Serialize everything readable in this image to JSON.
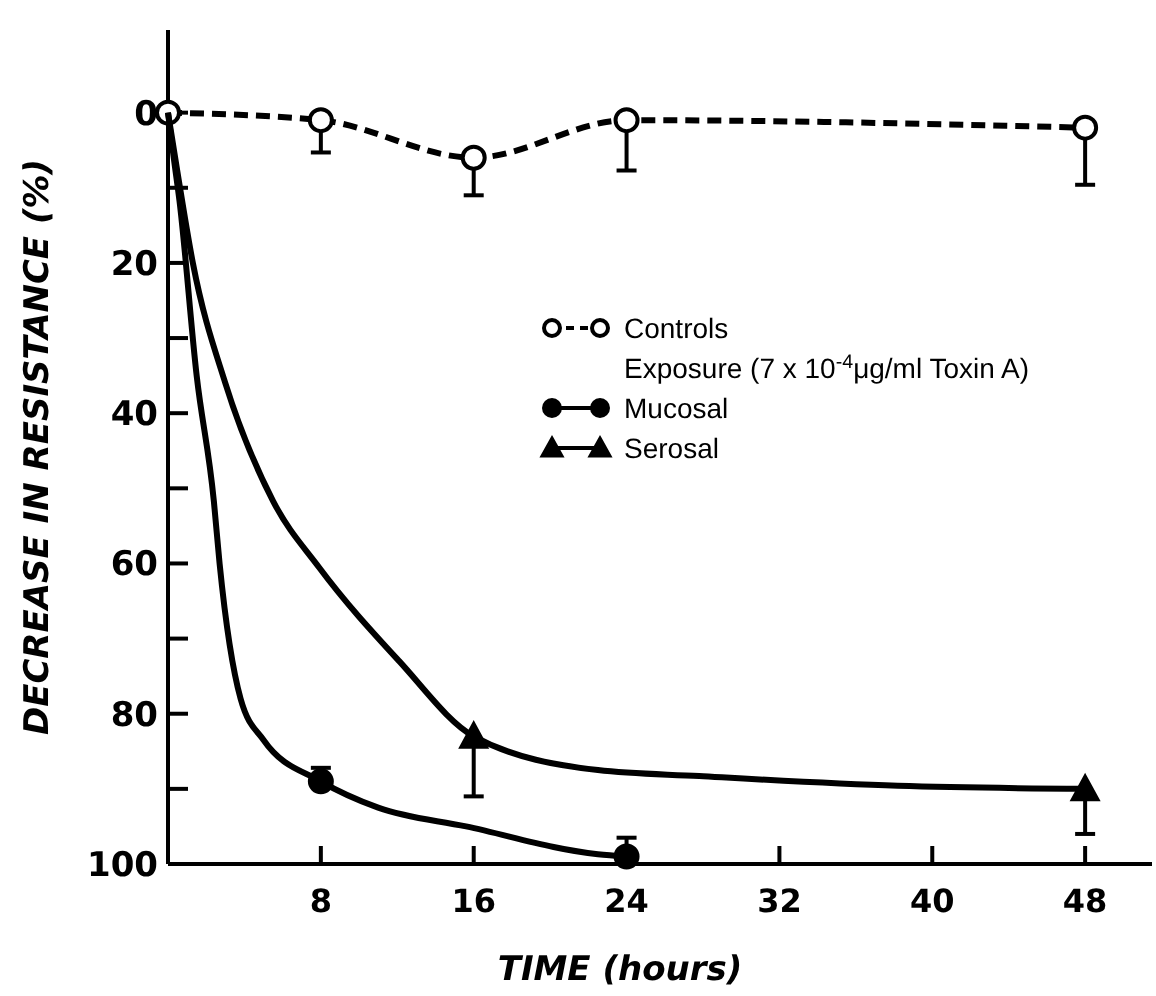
{
  "chart_data": {
    "type": "line",
    "xlabel": "TIME (hours)",
    "ylabel": "DECREASE IN RESISTANCE (%)",
    "xlim": [
      0,
      51.5
    ],
    "ylim": [
      100,
      -11
    ],
    "xticks": [
      8,
      16,
      24,
      32,
      40,
      48
    ],
    "yticks": [
      0,
      {
        "value": 10,
        "label": null
      },
      20,
      {
        "value": 30,
        "label": null
      },
      40,
      {
        "value": 50,
        "label": null
      },
      60,
      {
        "value": 70,
        "label": null
      },
      80,
      {
        "value": 90,
        "label": null
      },
      100
    ],
    "grid": false,
    "legend": "right",
    "annotations": [
      "Exposure (7 x 10$^{-4}$μg/ml Toxin A)"
    ],
    "series": [
      {
        "name": "Controls",
        "color": "#000000",
        "marker": "circle",
        "line_style": "dashed",
        "x": [
          0,
          8,
          16,
          24,
          48
        ],
        "values": [
          0,
          1,
          6,
          1,
          2
        ],
        "errors": [
          null,
          [
            1,
            5.3
          ],
          [
            6,
            11
          ],
          [
            1,
            7.7
          ],
          [
            2,
            9.6
          ]
        ]
      },
      {
        "color": "#000000",
        "marker": "none",
        "line_style": "solid",
        "x": [
          0,
          0.3,
          0.6,
          1.5,
          2.4,
          2.7,
          3.8,
          5,
          8,
          11,
          15.6,
          22.5,
          24
        ],
        "values": [
          0,
          6,
          11.7,
          35,
          51.7,
          60,
          78,
          83.5,
          89,
          92.5,
          95,
          98.7,
          99
        ]
      },
      {
        "color": "#000000",
        "marker": "none",
        "line_style": "solid",
        "x": [
          0,
          0.5,
          1.3,
          3,
          5.5,
          7.9,
          12.1,
          16,
          22.5,
          27.8,
          38.2,
          48
        ],
        "values": [
          0,
          8,
          20,
          36,
          51.7,
          60.5,
          73,
          83,
          87.5,
          88.3,
          89.6,
          90
        ]
      },
      {
        "name": "Mucosal",
        "type": "scatter",
        "color": "#000000",
        "marker": "circle",
        "x": [
          8,
          24
        ],
        "values": [
          89,
          99
        ],
        "errors": [
          [
            87.2,
            89
          ],
          [
            96.5,
            99
          ]
        ]
      },
      {
        "name": "Serosal",
        "type": "scatter",
        "color": "#000000",
        "marker": "triangle",
        "x": [
          16,
          48
        ],
        "values": [
          83,
          90
        ],
        "errors": [
          [
            83,
            91
          ],
          [
            90,
            96
          ]
        ]
      }
    ]
  }
}
